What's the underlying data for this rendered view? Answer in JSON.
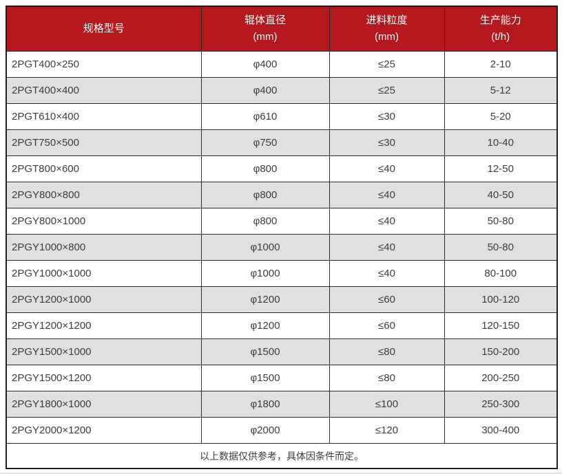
{
  "table": {
    "colors": {
      "header_background": "#b5181d",
      "header_text": "#ffffff",
      "alt_row_background": "#e0e0e0",
      "row_background": "#ffffff",
      "body_text": "#3d3d3f",
      "border": "#2b2b2b"
    },
    "columns": [
      {
        "label": "规格型号",
        "unit": ""
      },
      {
        "label": "辊体直径",
        "unit": "(mm)"
      },
      {
        "label": "进料粒度",
        "unit": "(mm)"
      },
      {
        "label": "生产能力",
        "unit": "(t/h)"
      }
    ],
    "rows": [
      [
        "2PGT400×250",
        "φ400",
        "≤25",
        "2-10"
      ],
      [
        "2PGT400×400",
        "φ400",
        "≤25",
        "5-12"
      ],
      [
        "2PGT610×400",
        "φ610",
        "≤30",
        "5-20"
      ],
      [
        "2PGT750×500",
        "φ750",
        "≤30",
        "10-40"
      ],
      [
        "2PGT800×600",
        "φ800",
        "≤40",
        "12-50"
      ],
      [
        "2PGY800×800",
        "φ800",
        "≤40",
        "40-50"
      ],
      [
        "2PGY800×1000",
        "φ800",
        "≤40",
        "50-80"
      ],
      [
        "2PGY1000×800",
        "φ1000",
        "≤40",
        "50-80"
      ],
      [
        "2PGY1000×1000",
        "φ1000",
        "≤40",
        "80-100"
      ],
      [
        "2PGY1200×1000",
        "φ1200",
        "≤60",
        "100-120"
      ],
      [
        "2PGY1200×1200",
        "φ1200",
        "≤60",
        "120-150"
      ],
      [
        "2PGY1500×1000",
        "φ1500",
        "≤80",
        "150-200"
      ],
      [
        "2PGY1500×1200",
        "φ1500",
        "≤80",
        "200-250"
      ],
      [
        "2PGY1800×1000",
        "φ1800",
        "≤100",
        "250-300"
      ],
      [
        "2PGY2000×1200",
        "φ2000",
        "≤120",
        "300-400"
      ]
    ],
    "footer_note": "以上数据仅供参考，具体因条件而定。"
  }
}
